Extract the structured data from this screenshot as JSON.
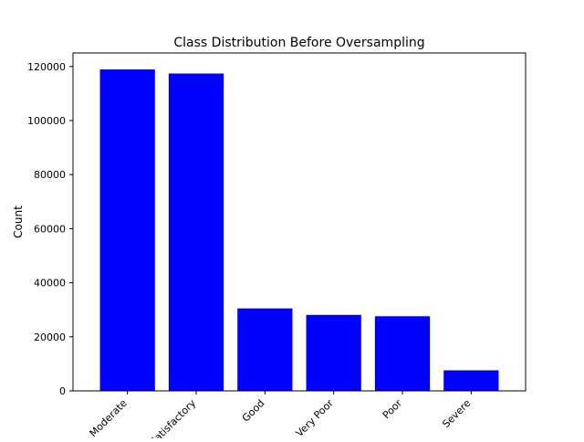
{
  "chart_data": {
    "type": "bar",
    "title": "Class Distribution Before Oversampling",
    "xlabel": "",
    "ylabel": "Count",
    "categories": [
      "Moderate",
      "Satisfactory",
      "Good",
      "Very Poor",
      "Poor",
      "Severe"
    ],
    "values": [
      118900,
      117400,
      30500,
      28100,
      27600,
      7600
    ],
    "ylim": [
      0,
      125000
    ],
    "yticks": [
      0,
      20000,
      40000,
      60000,
      80000,
      100000,
      120000
    ],
    "bar_color": "#0000ff",
    "grid": false,
    "legend": false
  }
}
